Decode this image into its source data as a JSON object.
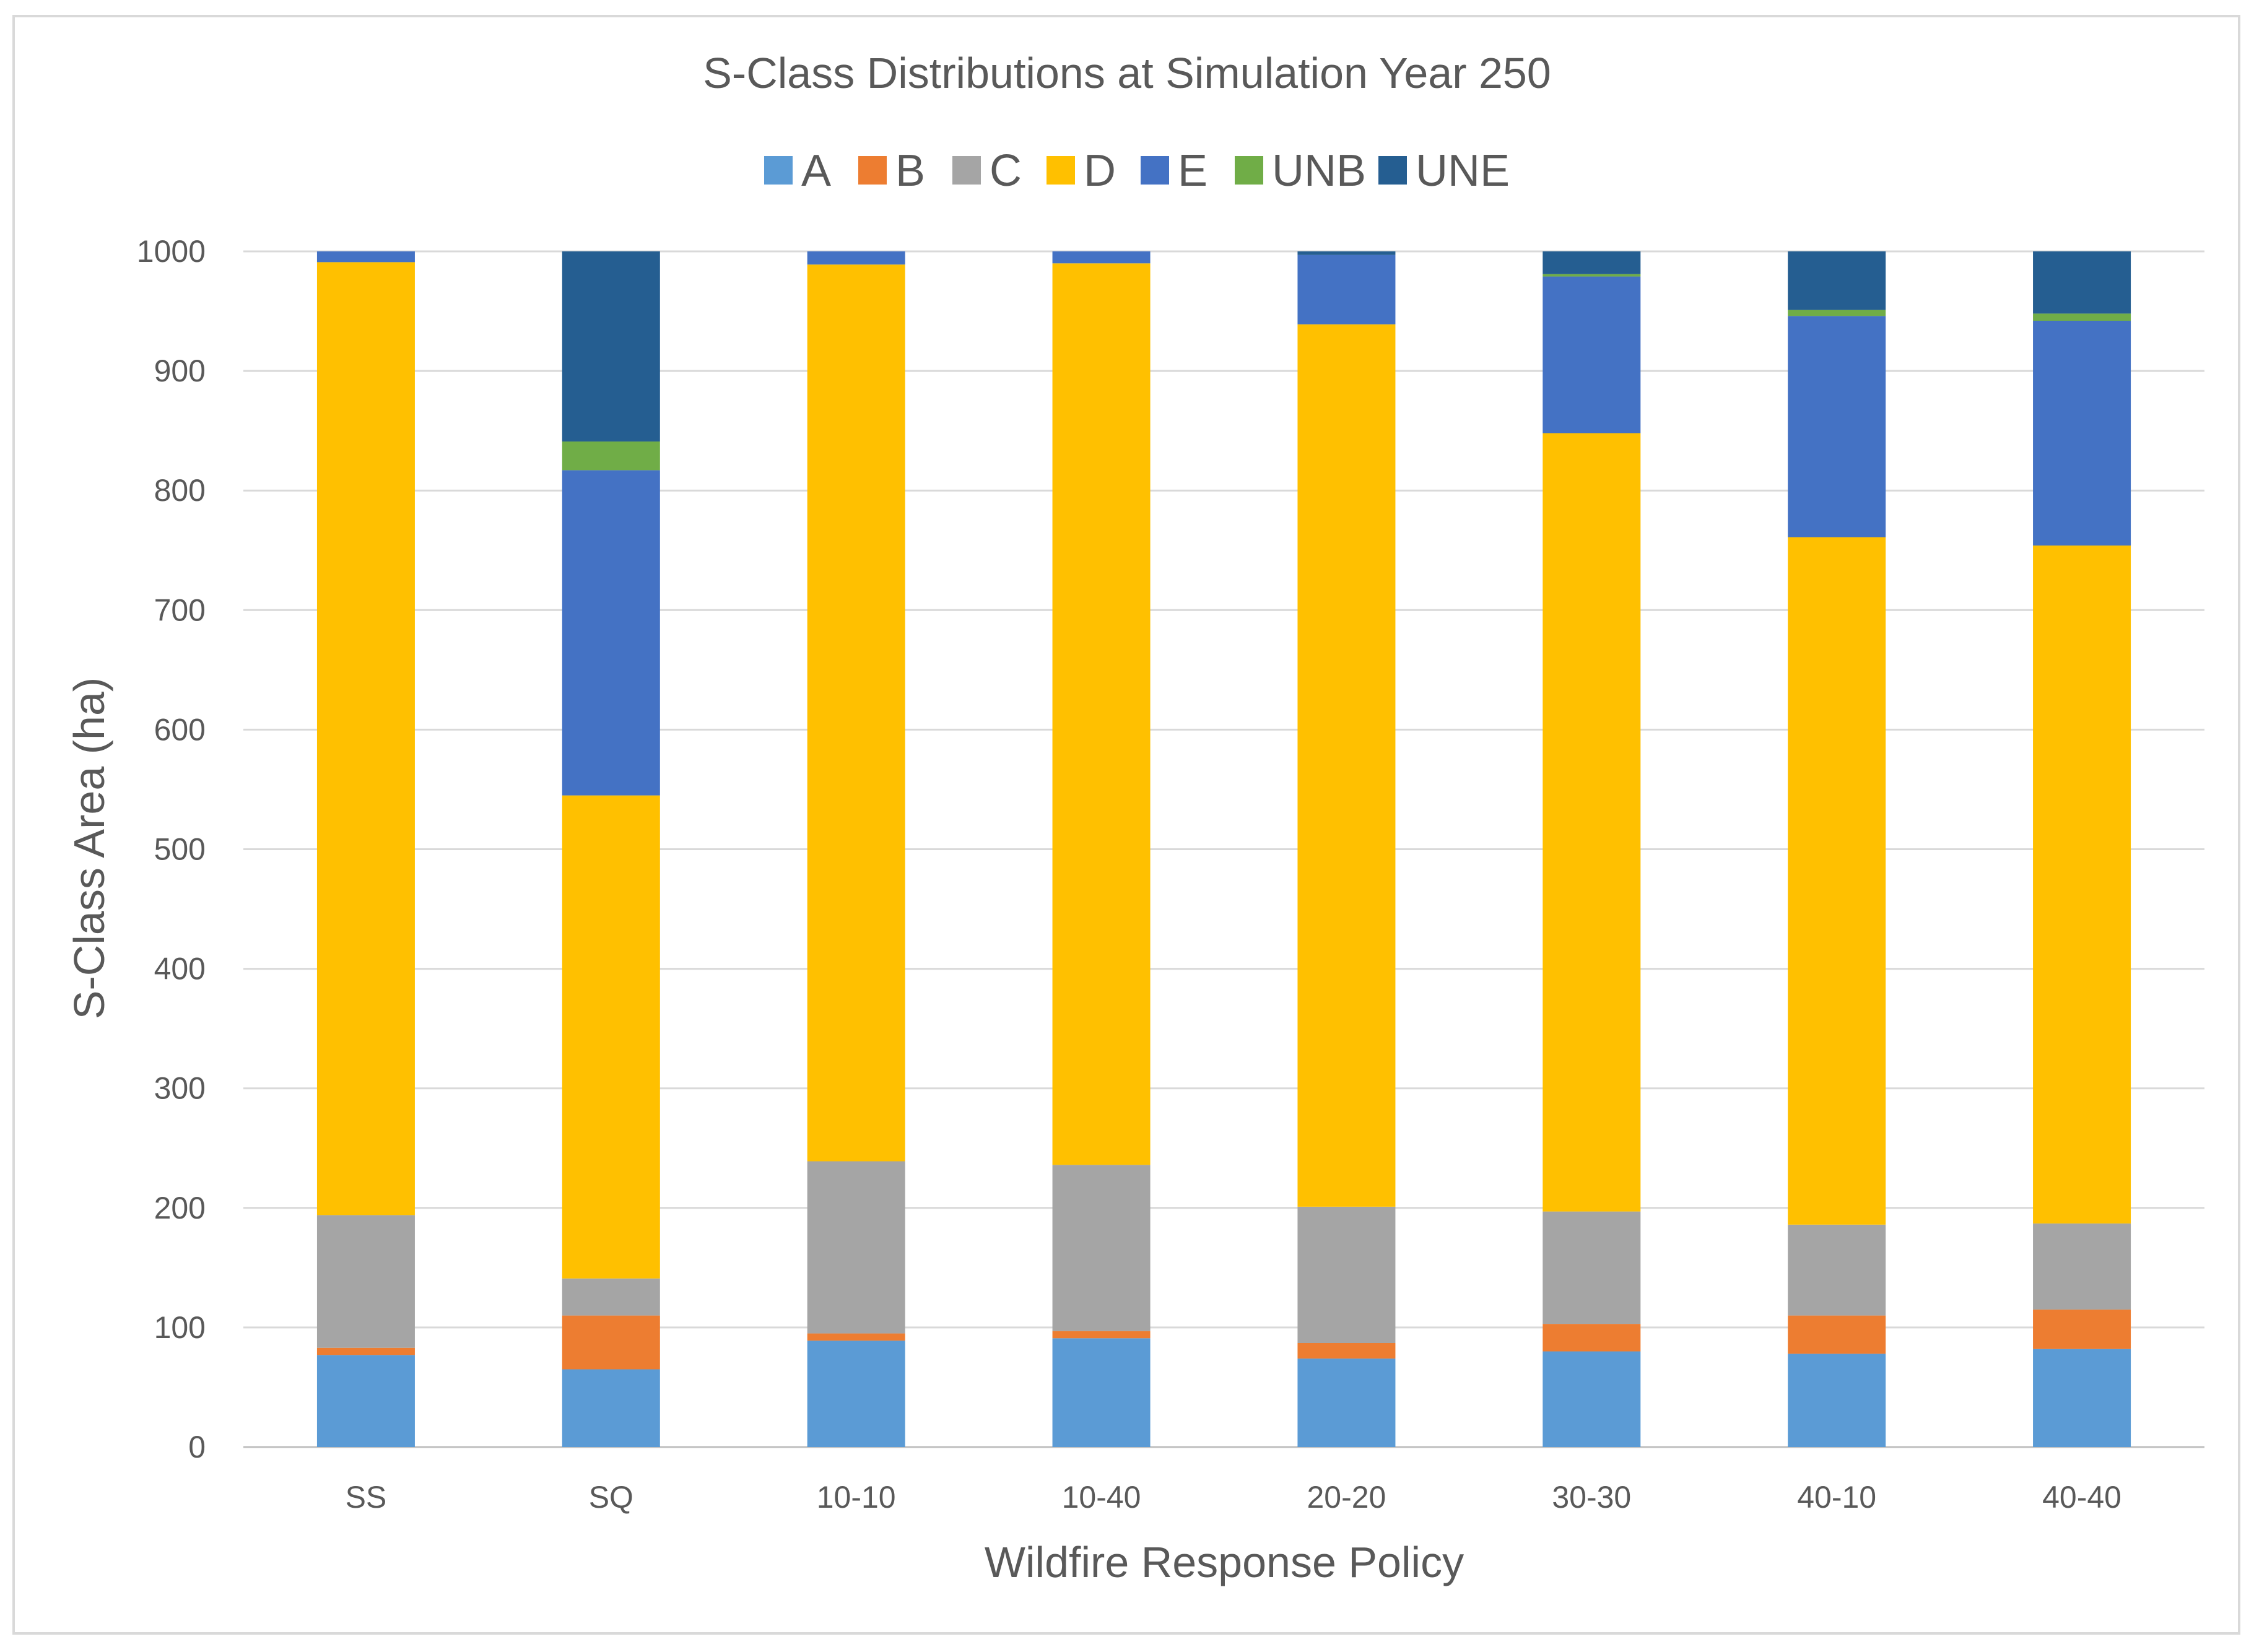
{
  "chart_data": {
    "type": "bar",
    "stacked": true,
    "title": "S-Class Distributions at Simulation Year 250",
    "xlabel": "Wildfire Response Policy",
    "ylabel": "S-Class Area (ha)",
    "ylim": [
      0,
      1000
    ],
    "yticks": [
      "0",
      "100",
      "200",
      "300",
      "400",
      "500",
      "600",
      "700",
      "800",
      "900",
      "1000"
    ],
    "grid": true,
    "legend_position": "top",
    "categories": [
      "SS",
      "SQ",
      "10-10",
      "10-40",
      "20-20",
      "30-30",
      "40-10",
      "40-40"
    ],
    "series": [
      {
        "name": "A",
        "color": "#5b9bd5",
        "values": [
          77,
          65,
          89,
          91,
          74,
          80,
          78,
          82
        ]
      },
      {
        "name": "B",
        "color": "#ed7d31",
        "values": [
          6,
          45,
          6,
          6,
          13,
          23,
          32,
          33
        ]
      },
      {
        "name": "C",
        "color": "#a5a5a5",
        "values": [
          111,
          31,
          144,
          139,
          114,
          94,
          76,
          72
        ]
      },
      {
        "name": "D",
        "color": "#ffc000",
        "values": [
          797,
          404,
          750,
          754,
          738,
          651,
          575,
          567
        ]
      },
      {
        "name": "E",
        "color": "#4472c4",
        "values": [
          9,
          272,
          11,
          10,
          58,
          131,
          185,
          188
        ]
      },
      {
        "name": "UNB",
        "color": "#70ad47",
        "values": [
          0,
          24,
          0,
          0,
          0,
          2,
          5,
          6
        ]
      },
      {
        "name": "UNE",
        "color": "#255e91",
        "values": [
          0,
          159,
          0,
          0,
          3,
          19,
          49,
          52
        ]
      }
    ]
  }
}
